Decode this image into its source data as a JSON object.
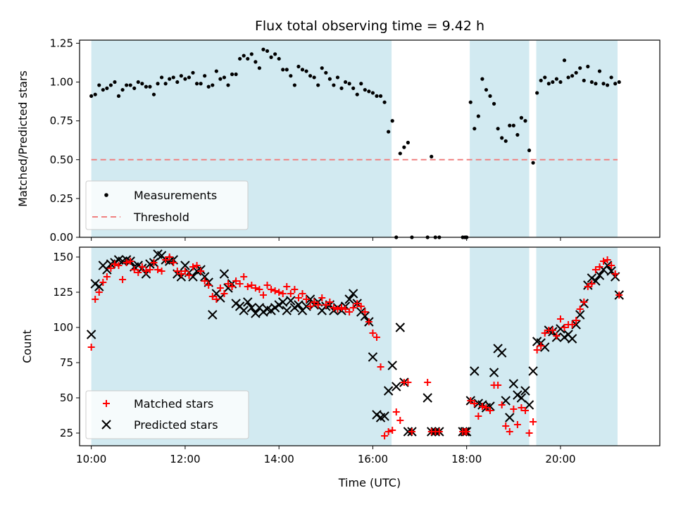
{
  "chart_data": [
    {
      "type": "scatter",
      "title": "Flux total observing time = 9.42 h",
      "xlabel": "",
      "ylabel": "Matched/Predicted stars",
      "xlim": [
        "09:45",
        "22:07"
      ],
      "ylim": [
        0,
        1.27
      ],
      "yticks": [
        0.0,
        0.25,
        0.5,
        0.75,
        1.0,
        1.25
      ],
      "ytick_labels": [
        "0.00",
        "0.25",
        "0.50",
        "0.75",
        "1.00",
        "1.25"
      ],
      "xticks": [
        "10:00",
        "12:00",
        "14:00",
        "16:00",
        "18:00",
        "20:00"
      ],
      "x_tick_labels_shown": false,
      "grid": false,
      "legend_position": "lower-left",
      "shaded_intervals": [
        [
          "10:00",
          "16:24"
        ],
        [
          "18:04",
          "19:20"
        ],
        [
          "19:29",
          "21:13"
        ]
      ],
      "shade_color": "#add8e6",
      "series": [
        {
          "name": "Measurements",
          "kind": "scatter",
          "color": "#000000",
          "x": [
            "10:00",
            "10:05",
            "10:10",
            "10:15",
            "10:20",
            "10:25",
            "10:30",
            "10:35",
            "10:40",
            "10:45",
            "10:50",
            "10:55",
            "11:00",
            "11:05",
            "11:10",
            "11:15",
            "11:20",
            "11:25",
            "11:30",
            "11:35",
            "11:40",
            "11:45",
            "11:50",
            "11:55",
            "12:00",
            "12:05",
            "12:10",
            "12:15",
            "12:20",
            "12:25",
            "12:30",
            "12:35",
            "12:40",
            "12:45",
            "12:50",
            "12:55",
            "13:00",
            "13:05",
            "13:10",
            "13:15",
            "13:20",
            "13:25",
            "13:30",
            "13:35",
            "13:40",
            "13:45",
            "13:50",
            "13:55",
            "14:00",
            "14:05",
            "14:10",
            "14:15",
            "14:20",
            "14:25",
            "14:30",
            "14:35",
            "14:40",
            "14:45",
            "14:50",
            "14:55",
            "15:00",
            "15:05",
            "15:10",
            "15:15",
            "15:20",
            "15:25",
            "15:30",
            "15:35",
            "15:40",
            "15:45",
            "15:50",
            "15:55",
            "16:00",
            "16:05",
            "16:10",
            "16:15",
            "16:20",
            "16:25",
            "16:30",
            "16:35",
            "16:40",
            "16:45",
            "16:50",
            "17:10",
            "17:15",
            "17:20",
            "17:25",
            "17:55",
            "17:58",
            "18:00",
            "18:05",
            "18:10",
            "18:15",
            "18:20",
            "18:25",
            "18:30",
            "18:35",
            "18:40",
            "18:45",
            "18:50",
            "18:55",
            "19:00",
            "19:05",
            "19:10",
            "19:15",
            "19:20",
            "19:25",
            "19:30",
            "19:35",
            "19:40",
            "19:45",
            "19:50",
            "19:55",
            "20:00",
            "20:05",
            "20:10",
            "20:15",
            "20:20",
            "20:25",
            "20:30",
            "20:35",
            "20:40",
            "20:45",
            "20:50",
            "20:55",
            "21:00",
            "21:05",
            "21:10",
            "21:15"
          ],
          "y": [
            0.91,
            0.92,
            0.98,
            0.95,
            0.96,
            0.98,
            1.0,
            0.91,
            0.95,
            0.98,
            0.98,
            0.96,
            1.0,
            0.99,
            0.97,
            0.97,
            0.92,
            0.99,
            1.03,
            0.99,
            1.02,
            1.03,
            1.0,
            1.04,
            1.02,
            1.03,
            1.06,
            0.99,
            0.99,
            1.04,
            0.97,
            0.98,
            1.07,
            1.02,
            1.03,
            0.98,
            1.05,
            1.05,
            1.15,
            1.17,
            1.15,
            1.18,
            1.13,
            1.09,
            1.21,
            1.2,
            1.16,
            1.18,
            1.15,
            1.08,
            1.08,
            1.04,
            0.98,
            1.1,
            1.08,
            1.07,
            1.04,
            1.03,
            0.98,
            1.09,
            1.06,
            1.02,
            0.98,
            1.03,
            0.96,
            1.0,
            0.99,
            0.96,
            0.92,
            0.99,
            0.95,
            0.94,
            0.93,
            0.91,
            0.91,
            0.87,
            0.68,
            0.75,
            0.0,
            0.54,
            0.58,
            0.61,
            0.0,
            0.0,
            0.52,
            0.0,
            0.0,
            0.0,
            0.0,
            0.0,
            0.87,
            0.7,
            0.78,
            1.02,
            0.95,
            0.91,
            0.86,
            0.7,
            0.64,
            0.62,
            0.72,
            0.72,
            0.66,
            0.77,
            0.75,
            0.56,
            0.48,
            0.93,
            1.01,
            1.03,
            0.99,
            1.0,
            1.02,
            1.0,
            1.14,
            1.03,
            1.04,
            1.06,
            1.09,
            1.01,
            1.1,
            1.0,
            0.99,
            1.07,
            0.99,
            0.98,
            1.03,
            0.99,
            1.0
          ]
        },
        {
          "name": "Threshold",
          "kind": "hline",
          "color": "#f08080",
          "y": 0.5,
          "x_range": [
            "10:00",
            "21:13"
          ]
        }
      ]
    },
    {
      "type": "scatter",
      "title": "",
      "xlabel": "Time (UTC)",
      "ylabel": "Count",
      "xlim": [
        "09:45",
        "22:07"
      ],
      "ylim": [
        16,
        157
      ],
      "yticks": [
        25,
        50,
        75,
        100,
        125,
        150
      ],
      "ytick_labels": [
        "25",
        "50",
        "75",
        "100",
        "125",
        "150"
      ],
      "xticks": [
        "10:00",
        "12:00",
        "14:00",
        "16:00",
        "18:00",
        "20:00"
      ],
      "x_tick_labels_shown": true,
      "grid": false,
      "legend_position": "lower-left",
      "shaded_intervals": [
        [
          "10:00",
          "16:24"
        ],
        [
          "18:04",
          "19:20"
        ],
        [
          "19:29",
          "21:13"
        ]
      ],
      "shade_color": "#add8e6",
      "series": [
        {
          "name": "Matched stars",
          "kind": "scatter",
          "marker": "+",
          "color": "#ff0000",
          "x": [
            "10:00",
            "10:05",
            "10:10",
            "10:15",
            "10:20",
            "10:25",
            "10:30",
            "10:35",
            "10:40",
            "10:45",
            "10:50",
            "10:55",
            "11:00",
            "11:05",
            "11:10",
            "11:15",
            "11:20",
            "11:25",
            "11:30",
            "11:35",
            "11:40",
            "11:45",
            "11:50",
            "11:55",
            "12:00",
            "12:05",
            "12:10",
            "12:15",
            "12:20",
            "12:25",
            "12:30",
            "12:35",
            "12:40",
            "12:45",
            "12:50",
            "12:55",
            "13:00",
            "13:05",
            "13:10",
            "13:15",
            "13:20",
            "13:25",
            "13:30",
            "13:35",
            "13:40",
            "13:45",
            "13:50",
            "13:55",
            "14:00",
            "14:05",
            "14:10",
            "14:15",
            "14:20",
            "14:25",
            "14:30",
            "14:35",
            "14:40",
            "14:45",
            "14:50",
            "14:55",
            "15:00",
            "15:05",
            "15:10",
            "15:15",
            "15:20",
            "15:25",
            "15:30",
            "15:35",
            "15:40",
            "15:45",
            "15:50",
            "15:55",
            "16:00",
            "16:05",
            "16:10",
            "16:15",
            "16:20",
            "16:25",
            "16:30",
            "16:35",
            "16:40",
            "16:45",
            "16:50",
            "17:10",
            "17:15",
            "17:20",
            "17:25",
            "17:55",
            "17:58",
            "18:00",
            "18:05",
            "18:10",
            "18:15",
            "18:20",
            "18:25",
            "18:30",
            "18:35",
            "18:40",
            "18:45",
            "18:50",
            "18:55",
            "19:00",
            "19:05",
            "19:10",
            "19:15",
            "19:20",
            "19:25",
            "19:30",
            "19:35",
            "19:40",
            "19:45",
            "19:50",
            "19:55",
            "20:00",
            "20:05",
            "20:10",
            "20:15",
            "20:20",
            "20:25",
            "20:30",
            "20:35",
            "20:40",
            "20:45",
            "20:50",
            "20:55",
            "21:00",
            "21:05",
            "21:10",
            "21:15"
          ],
          "y": [
            86,
            120,
            125,
            132,
            136,
            142,
            145,
            144,
            134,
            146,
            147,
            141,
            139,
            143,
            140,
            141,
            146,
            141,
            140,
            148,
            150,
            146,
            140,
            138,
            140,
            137,
            143,
            144,
            140,
            133,
            130,
            122,
            120,
            128,
            124,
            131,
            129,
            133,
            131,
            136,
            129,
            130,
            128,
            127,
            123,
            130,
            127,
            126,
            125,
            124,
            129,
            124,
            127,
            121,
            124,
            120,
            115,
            118,
            116,
            121,
            116,
            118,
            114,
            113,
            114,
            113,
            111,
            114,
            117,
            115,
            111,
            104,
            96,
            93,
            72,
            23,
            26,
            27,
            40,
            34,
            61,
            61,
            26,
            61,
            26,
            26,
            26,
            26,
            26,
            26,
            48,
            46,
            37,
            44,
            43,
            41,
            59,
            59,
            45,
            30,
            26,
            42,
            31,
            43,
            41,
            25,
            33,
            84,
            87,
            96,
            98,
            98,
            94,
            106,
            100,
            102,
            102,
            105,
            113,
            118,
            129,
            131,
            141,
            143,
            147,
            148,
            144,
            138,
            123
          ]
        },
        {
          "name": "Predicted stars",
          "kind": "scatter",
          "marker": "x",
          "color": "#000000",
          "x": [
            "10:00",
            "10:05",
            "10:10",
            "10:15",
            "10:20",
            "10:25",
            "10:30",
            "10:35",
            "10:40",
            "10:45",
            "10:50",
            "10:55",
            "11:00",
            "11:05",
            "11:10",
            "11:15",
            "11:20",
            "11:25",
            "11:30",
            "11:35",
            "11:40",
            "11:45",
            "11:50",
            "11:55",
            "12:00",
            "12:05",
            "12:10",
            "12:15",
            "12:20",
            "12:25",
            "12:30",
            "12:35",
            "12:40",
            "12:45",
            "12:50",
            "12:55",
            "13:00",
            "13:05",
            "13:10",
            "13:15",
            "13:20",
            "13:25",
            "13:30",
            "13:35",
            "13:40",
            "13:45",
            "13:50",
            "13:55",
            "14:00",
            "14:05",
            "14:10",
            "14:15",
            "14:20",
            "14:25",
            "14:30",
            "14:35",
            "14:40",
            "14:45",
            "14:50",
            "14:55",
            "15:00",
            "15:05",
            "15:10",
            "15:15",
            "15:20",
            "15:25",
            "15:30",
            "15:35",
            "15:40",
            "15:45",
            "15:50",
            "15:55",
            "16:00",
            "16:05",
            "16:10",
            "16:15",
            "16:20",
            "16:25",
            "16:30",
            "16:35",
            "16:40",
            "16:45",
            "16:50",
            "17:10",
            "17:15",
            "17:20",
            "17:25",
            "17:55",
            "17:58",
            "18:00",
            "18:05",
            "18:10",
            "18:15",
            "18:20",
            "18:25",
            "18:30",
            "18:35",
            "18:40",
            "18:45",
            "18:50",
            "18:55",
            "19:00",
            "19:05",
            "19:10",
            "19:15",
            "19:20",
            "19:25",
            "19:30",
            "19:35",
            "19:40",
            "19:45",
            "19:50",
            "19:55",
            "20:00",
            "20:05",
            "20:10",
            "20:15",
            "20:20",
            "20:25",
            "20:30",
            "20:35",
            "20:40",
            "20:45",
            "20:50",
            "20:55",
            "21:00",
            "21:05",
            "21:10",
            "21:15"
          ],
          "y": [
            95,
            131,
            129,
            144,
            141,
            145,
            146,
            148,
            147,
            148,
            147,
            143,
            144,
            142,
            138,
            145,
            146,
            152,
            151,
            148,
            147,
            148,
            138,
            136,
            144,
            139,
            136,
            140,
            141,
            136,
            132,
            109,
            124,
            121,
            138,
            128,
            131,
            117,
            115,
            112,
            118,
            114,
            110,
            114,
            111,
            113,
            112,
            114,
            116,
            118,
            112,
            119,
            114,
            116,
            112,
            115,
            120,
            116,
            118,
            112,
            115,
            116,
            112,
            114,
            112,
            115,
            120,
            124,
            117,
            111,
            108,
            104,
            79,
            38,
            36,
            37,
            55,
            73,
            58,
            100,
            61,
            26,
            26,
            50,
            26,
            26,
            26,
            26,
            26,
            26,
            48,
            69,
            46,
            45,
            43,
            44,
            68,
            85,
            82,
            48,
            36,
            60,
            52,
            50,
            55,
            45,
            69,
            90,
            89,
            86,
            98,
            97,
            93,
            99,
            93,
            95,
            92,
            102,
            109,
            117,
            130,
            135,
            133,
            137,
            141,
            144,
            140,
            136,
            123
          ]
        }
      ]
    }
  ]
}
